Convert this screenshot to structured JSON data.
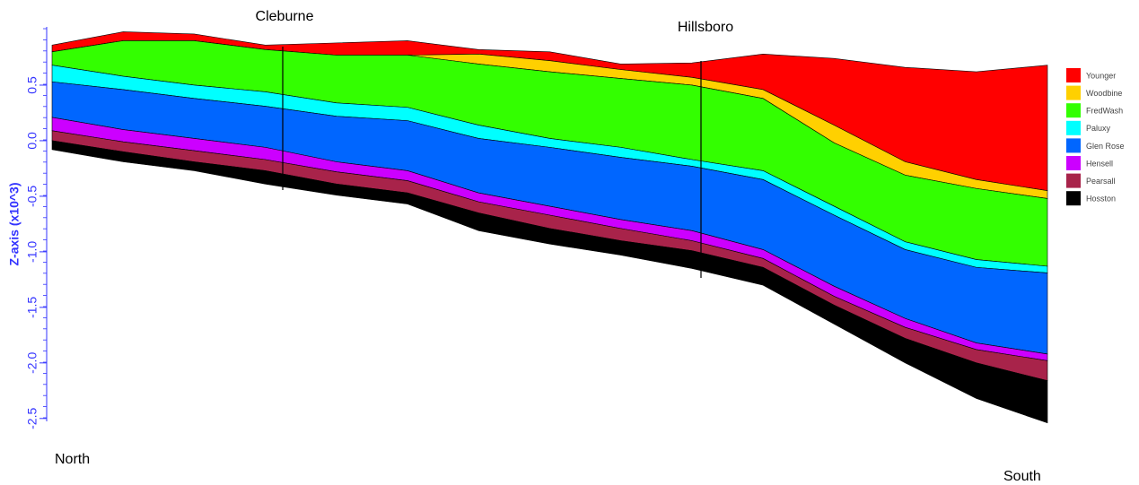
{
  "chart_data": {
    "type": "layered-area",
    "annotations": [
      {
        "text": "Cleburne"
      },
      {
        "text": "Hillsboro"
      }
    ],
    "corner_labels": {
      "left": "North",
      "right": "South"
    },
    "y_label": "Z-axis (x10^3)",
    "categories": [
      null,
      null,
      null,
      null,
      null,
      null,
      null,
      null,
      null,
      null,
      null,
      null,
      null,
      null,
      null
    ],
    "ylim": [
      -2.55,
      1.0
    ],
    "yticks": [
      0.5,
      {
        "value": 0,
        "label": "0.0"
      },
      -0.5,
      {
        "value": -1,
        "label": "-1.0"
      },
      -1.5,
      {
        "value": -2,
        "label": "-2.0"
      },
      -2.5
    ],
    "axis_color": "#3333ff",
    "legend": "right",
    "series": [
      {
        "name": "Younger",
        "color": "#ff0000",
        "values": [
          0.86,
          0.98,
          0.96,
          0.86,
          0.88,
          0.9,
          0.82,
          0.8,
          0.69,
          0.7,
          0.78,
          0.74,
          0.66,
          0.62,
          0.68
        ]
      },
      {
        "name": "Woodbine",
        "color": "#ffd000",
        "values": [
          0.8,
          0.9,
          0.9,
          0.82,
          0.77,
          0.77,
          0.78,
          0.72,
          0.64,
          0.57,
          0.46,
          0.14,
          -0.19,
          -0.35,
          -0.45
        ]
      },
      {
        "name": "FredWash",
        "color": "#33ff00",
        "values": [
          0.8,
          0.9,
          0.9,
          0.82,
          0.77,
          0.77,
          0.69,
          0.62,
          0.56,
          0.5,
          0.38,
          -0.02,
          -0.31,
          -0.43,
          -0.52
        ]
      },
      {
        "name": "Paluxy",
        "color": "#00ffff",
        "values": [
          0.68,
          0.58,
          0.5,
          0.44,
          0.34,
          0.3,
          0.14,
          0.02,
          -0.06,
          -0.17,
          -0.27,
          -0.59,
          -0.91,
          -1.07,
          -1.13
        ]
      },
      {
        "name": "Glen Rose",
        "color": "#0066ff",
        "values": [
          0.53,
          0.46,
          0.38,
          0.31,
          0.22,
          0.18,
          0.02,
          -0.06,
          -0.15,
          -0.23,
          -0.35,
          -0.67,
          -0.98,
          -1.14,
          -1.19
        ]
      },
      {
        "name": "Hensell",
        "color": "#cc00ff",
        "values": [
          0.21,
          0.1,
          0.02,
          -0.06,
          -0.19,
          -0.27,
          -0.47,
          -0.59,
          -0.71,
          -0.81,
          -0.98,
          -1.31,
          -1.6,
          -1.82,
          -1.92
        ]
      },
      {
        "name": "Pearsall",
        "color": "#a8234a",
        "values": [
          0.09,
          -0.01,
          -0.09,
          -0.17,
          -0.28,
          -0.36,
          -0.55,
          -0.67,
          -0.79,
          -0.9,
          -1.06,
          -1.4,
          -1.68,
          -1.88,
          -1.98
        ]
      },
      {
        "name": "Hosston",
        "color": "#000000",
        "values": [
          0,
          -0.1,
          -0.19,
          -0.27,
          -0.39,
          -0.47,
          -0.65,
          -0.79,
          -0.9,
          -0.99,
          -1.14,
          -1.48,
          -1.78,
          -2.0,
          -2.16
        ]
      }
    ],
    "base": [
      -0.08,
      -0.19,
      -0.27,
      -0.39,
      -0.49,
      -0.57,
      -0.81,
      -0.93,
      -1.03,
      -1.15,
      -1.3,
      -1.65,
      -2.0,
      -2.32,
      -2.54
    ]
  }
}
